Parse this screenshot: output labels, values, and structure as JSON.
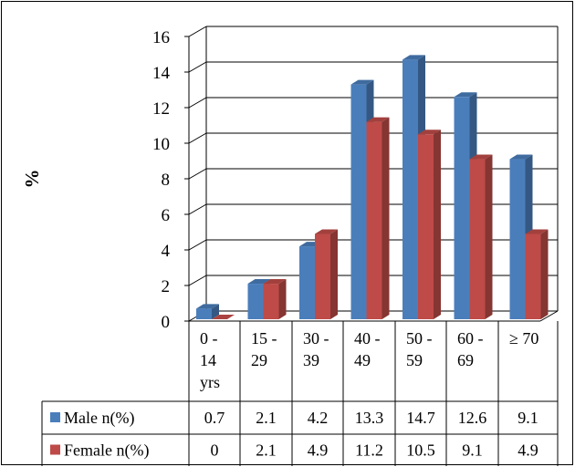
{
  "chart_data": {
    "type": "bar",
    "style": "3d-clustered-column",
    "ylabel": "%",
    "ylim": [
      0,
      16
    ],
    "yticks": [
      "0",
      "2",
      "4",
      "6",
      "8",
      "10",
      "12",
      "14",
      "16"
    ],
    "grid": true,
    "categories": [
      [
        "0 -",
        "14",
        "yrs"
      ],
      [
        "15 -",
        "29"
      ],
      [
        "30 -",
        "39"
      ],
      [
        "40 -",
        "49"
      ],
      [
        "50 -",
        "59"
      ],
      [
        "60 -",
        "69"
      ],
      [
        "≥ 70"
      ]
    ],
    "series": [
      {
        "name": "Male n(%)",
        "color": "#4a7ebb",
        "values": [
          0.7,
          2.1,
          4.2,
          13.3,
          14.7,
          12.6,
          9.1
        ],
        "labels": [
          "0.7",
          "2.1",
          "4.2",
          "13.3",
          "14.7",
          "12.6",
          "9.1"
        ]
      },
      {
        "name": "Female n(%)",
        "color": "#be4b48",
        "values": [
          0,
          2.1,
          4.9,
          11.2,
          10.5,
          9.1,
          4.9
        ],
        "labels": [
          "0",
          "2.1",
          "4.9",
          "11.2",
          "10.5",
          "9.1",
          "4.9"
        ]
      }
    ],
    "legend": "data-table"
  }
}
